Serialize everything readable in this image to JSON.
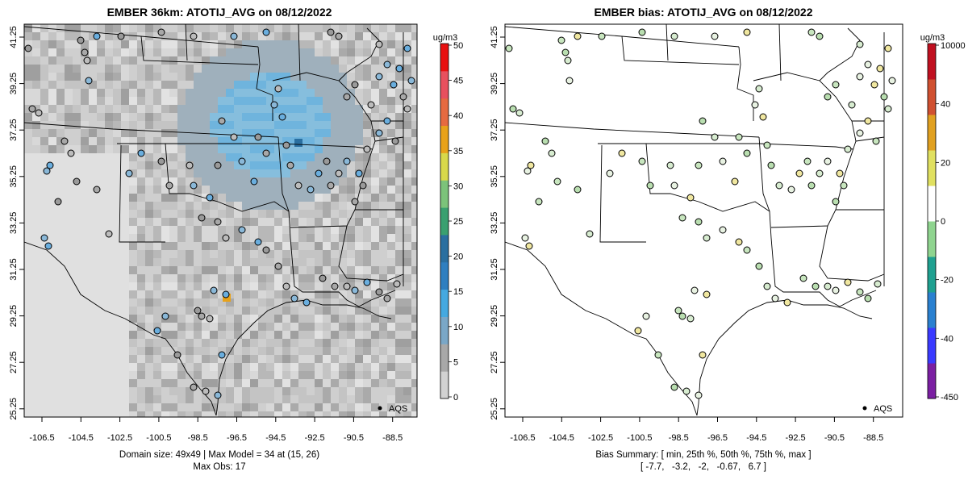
{
  "left_panel": {
    "title": "EMBER 36km: ATOTIJ_AVG on 08/12/2022",
    "x_ticks": [
      "-106.5",
      "-104.5",
      "-102.5",
      "-100.5",
      "-98.5",
      "-96.5",
      "-94.5",
      "-92.5",
      "-90.5",
      "-88.5"
    ],
    "y_ticks": [
      "41.25",
      "39.25",
      "37.25",
      "35.25",
      "33.25",
      "31.25",
      "29.25",
      "27.25",
      "25.25"
    ],
    "legend_label": "AQS",
    "footer_line1": "Domain size: 49x49 | Max Model = 34 at (15, 26)",
    "footer_line2": "Max Obs: 17",
    "colorbar": {
      "unit": "ug/m3",
      "ticks": [
        "50",
        "45",
        "40",
        "35",
        "30",
        "25",
        "20",
        "15",
        "10",
        "5",
        "0"
      ],
      "colors": [
        "#d2d2d2",
        "#a8a8a8",
        "#7aa7c7",
        "#45a9e0",
        "#2f7fc0",
        "#2a6fa0",
        "#3aa070",
        "#7cc37a",
        "#d8d84a",
        "#e8a21a",
        "#e66a40",
        "#e8505e",
        "#e81010"
      ]
    }
  },
  "right_panel": {
    "title": "EMBER bias: ATOTIJ_AVG on 08/12/2022",
    "x_ticks": [
      "-106.5",
      "-104.5",
      "-102.5",
      "-100.5",
      "-98.5",
      "-96.5",
      "-94.5",
      "-92.5",
      "-90.5",
      "-88.5"
    ],
    "y_ticks": [
      "41.25",
      "39.25",
      "37.25",
      "35.25",
      "33.25",
      "31.25",
      "29.25",
      "27.25",
      "25.25"
    ],
    "legend_label": "AQS",
    "footer_line1": "Bias Summary: [ min, 25th %, 50th %, 75th %, max ]",
    "footer_line2": "[ -7.7,   -3.2,   -2,   -0.67,   6.7 ]",
    "colorbar": {
      "unit": "ug/m3",
      "ticks": [
        "10000",
        "40",
        "20",
        "0",
        "-20",
        "-40",
        "-450"
      ],
      "colors": [
        "#7b1fa2",
        "#3a3aff",
        "#2a80d0",
        "#1fa090",
        "#8fd48f",
        "#ffffff",
        "#e0e060",
        "#e0a020",
        "#d05030",
        "#c01020"
      ]
    }
  },
  "colors": {
    "observation_point_default": "#9a9a9a",
    "bias_point_default": "#b9deb0",
    "coastline": "#000000"
  }
}
